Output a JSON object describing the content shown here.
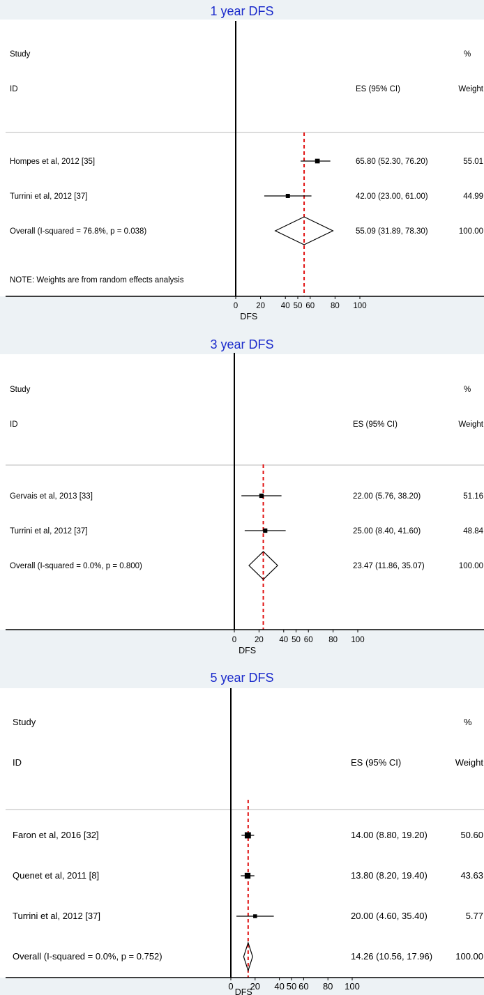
{
  "colors": {
    "band": "#edf2f5",
    "axis": "#000000",
    "separator": "#b8b8b8",
    "title": "#1a2acb",
    "reference_line": "#e01010",
    "marker": "#000000"
  },
  "chart_data": [
    {
      "type": "forest",
      "title": "1 year DFS",
      "col_study": "Study",
      "col_id": "ID",
      "col_es": "ES (95% CI)",
      "col_pct": "%",
      "col_weight": "Weight",
      "xlabel": "DFS",
      "xticks": [
        0,
        20,
        40,
        50,
        60,
        80,
        100
      ],
      "xlim": [
        0,
        100
      ],
      "reference_line": 55.09,
      "studies": [
        {
          "label": "Hompes et al, 2012 [35]",
          "es": 65.8,
          "lo": 52.3,
          "hi": 76.2,
          "es_text": "65.80 (52.30, 76.20)",
          "weight": "55.01"
        },
        {
          "label": "Turrini et al, 2012 [37]",
          "es": 42.0,
          "lo": 23.0,
          "hi": 61.0,
          "es_text": "42.00 (23.00, 61.00)",
          "weight": "44.99"
        }
      ],
      "overall": {
        "label": "Overall  (I-squared = 76.8%, p = 0.038)",
        "es": 55.09,
        "lo": 31.89,
        "hi": 78.3,
        "es_text": "55.09 (31.89, 78.30)",
        "weight": "100.00"
      },
      "note": "NOTE: Weights are from random effects analysis"
    },
    {
      "type": "forest",
      "title": "3 year DFS",
      "col_study": "Study",
      "col_id": "ID",
      "col_es": "ES (95% CI)",
      "col_pct": "%",
      "col_weight": "Weight",
      "xlabel": "DFS",
      "xticks": [
        0,
        20,
        40,
        50,
        60,
        80,
        100
      ],
      "xlim": [
        0,
        100
      ],
      "reference_line": 23.47,
      "studies": [
        {
          "label": "Gervais et al, 2013 [33]",
          "es": 22.0,
          "lo": 5.76,
          "hi": 38.2,
          "es_text": "22.00 (5.76, 38.20)",
          "weight": "51.16"
        },
        {
          "label": "Turrini et al, 2012 [37]",
          "es": 25.0,
          "lo": 8.4,
          "hi": 41.6,
          "es_text": "25.00 (8.40, 41.60)",
          "weight": "48.84"
        }
      ],
      "overall": {
        "label": "Overall  (I-squared = 0.0%, p = 0.800)",
        "es": 23.47,
        "lo": 11.86,
        "hi": 35.07,
        "es_text": "23.47 (11.86, 35.07)",
        "weight": "100.00"
      },
      "note": ""
    },
    {
      "type": "forest",
      "title": "5 year DFS",
      "col_study": "Study",
      "col_id": "ID",
      "col_es": "ES (95% CI)",
      "col_pct": "%",
      "col_weight": "Weight",
      "xlabel": "DFS",
      "xticks": [
        0,
        20,
        40,
        50,
        60,
        80,
        100
      ],
      "xlim": [
        0,
        100
      ],
      "reference_line": 14.26,
      "studies": [
        {
          "label": "Faron et al, 2016 [32]",
          "es": 14.0,
          "lo": 8.8,
          "hi": 19.2,
          "es_text": "14.00 (8.80, 19.20)",
          "weight": "50.60"
        },
        {
          "label": "Quenet et al, 2011 [8]",
          "es": 13.8,
          "lo": 8.2,
          "hi": 19.4,
          "es_text": "13.80 (8.20, 19.40)",
          "weight": "43.63"
        },
        {
          "label": "Turrini et al, 2012 [37]",
          "es": 20.0,
          "lo": 4.6,
          "hi": 35.4,
          "es_text": "20.00 (4.60, 35.40)",
          "weight": "5.77"
        }
      ],
      "overall": {
        "label": "Overall  (I-squared = 0.0%, p = 0.752)",
        "es": 14.26,
        "lo": 10.56,
        "hi": 17.96,
        "es_text": "14.26 (10.56, 17.96)",
        "weight": "100.00"
      },
      "note": ""
    }
  ]
}
